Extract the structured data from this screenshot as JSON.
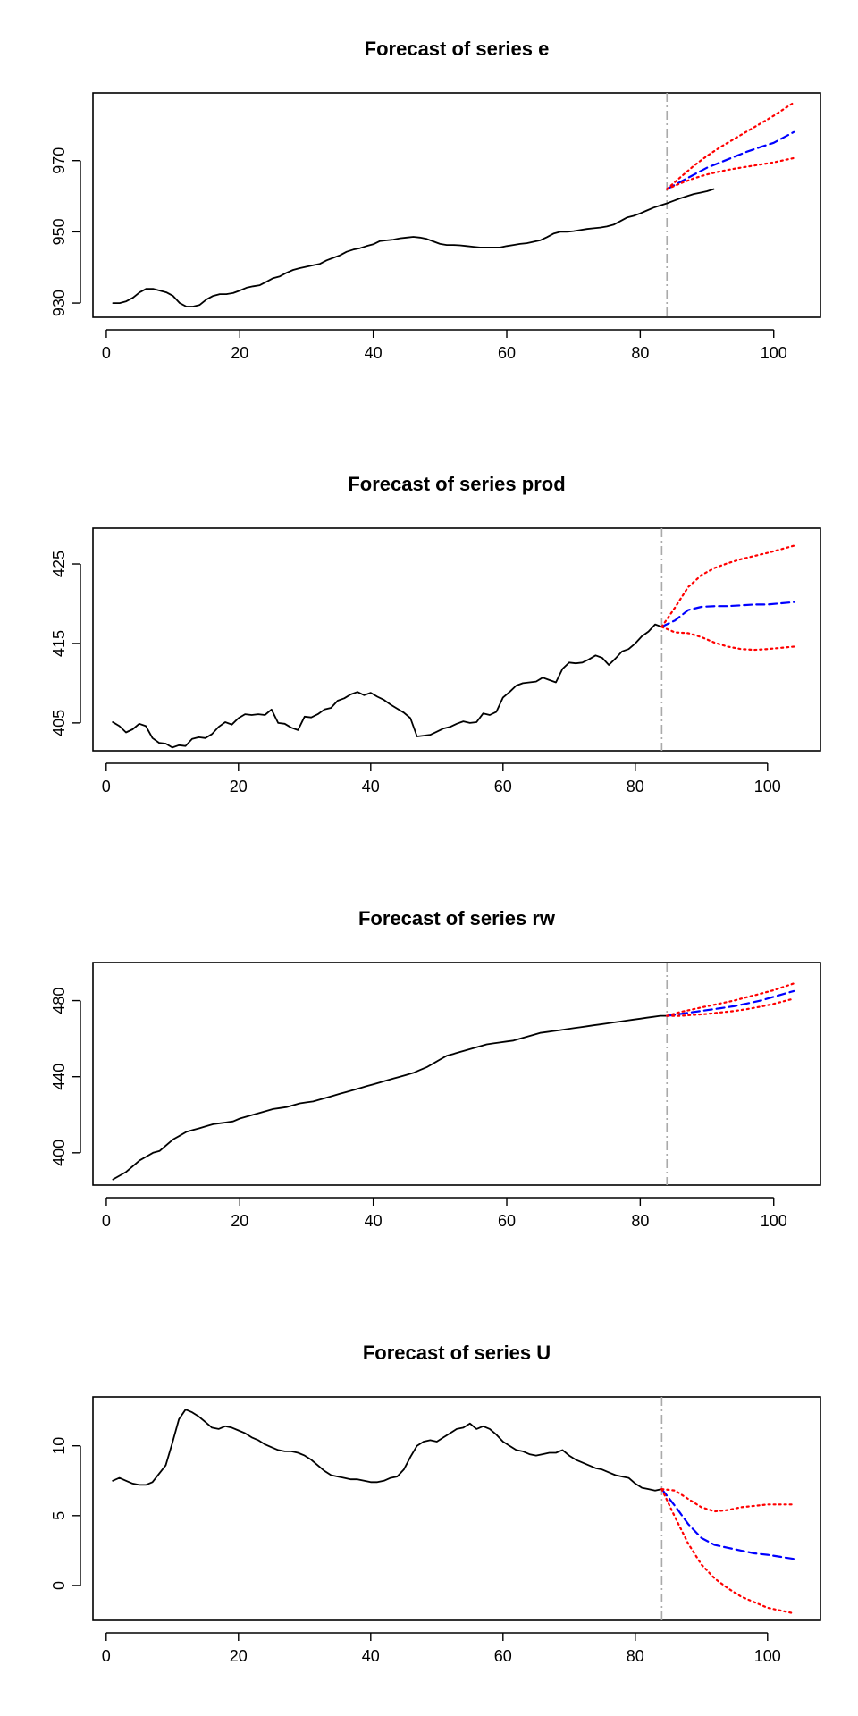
{
  "chart_data": [
    {
      "type": "line",
      "title": "Forecast of series e",
      "xlabel": "",
      "ylabel": "",
      "xlim": [
        -2,
        107
      ],
      "ylim": [
        926,
        989
      ],
      "x_ticks": [
        0,
        20,
        40,
        60,
        80,
        100
      ],
      "y_ticks": [
        930,
        950,
        970
      ],
      "forecast_origin": 84,
      "colors": {
        "observed": "#000000",
        "forecast": "#0000ff",
        "interval": "#ff0000",
        "origin_line": "#aaaaaa"
      },
      "series": [
        {
          "role": "observed",
          "x_start": 1,
          "values": [
            930,
            930,
            930.5,
            931.5,
            933,
            934,
            934,
            933.5,
            933,
            932,
            930,
            929,
            929,
            929.5,
            931,
            932,
            932.5,
            932.5,
            932.8,
            933.5,
            934.3,
            934.7,
            935,
            936,
            937,
            937.5,
            938.5,
            939.3,
            939.8,
            940.2,
            940.6,
            941,
            942,
            942.7,
            943.4,
            944.4,
            945,
            945.4,
            946,
            946.5,
            947.4,
            947.6,
            947.8,
            948.2,
            948.4,
            948.6,
            948.4,
            948,
            947.3,
            946.6,
            946.3,
            946.3,
            946.2,
            946,
            945.8,
            945.6,
            945.6,
            945.6,
            945.6,
            946,
            946.3,
            946.6,
            946.8,
            947.2,
            947.6,
            948.5,
            949.5,
            950,
            950,
            950.2,
            950.5,
            950.8,
            951,
            951.2,
            951.5,
            952,
            953,
            954,
            954.5,
            955.2,
            956,
            956.8,
            957.4,
            958,
            958.7,
            959.4,
            960,
            960.6,
            961,
            961.4,
            962
          ]
        },
        {
          "role": "forecast",
          "x": [
            84,
            86,
            88,
            90,
            92,
            94,
            96,
            98,
            100,
            103
          ],
          "values": [
            962,
            964,
            966,
            968,
            969.5,
            971,
            972.5,
            973.8,
            975,
            978
          ]
        },
        {
          "role": "upper",
          "x": [
            84,
            86,
            88,
            90,
            92,
            94,
            96,
            98,
            100,
            103
          ],
          "values": [
            962,
            965.3,
            968.5,
            971.3,
            973.8,
            976,
            978.2,
            980.4,
            982.6,
            986.3
          ]
        },
        {
          "role": "lower",
          "x": [
            84,
            86,
            88,
            90,
            92,
            94,
            96,
            98,
            100,
            103
          ],
          "values": [
            962,
            963.6,
            965,
            966.1,
            967,
            967.7,
            968.3,
            968.9,
            969.5,
            970.7
          ]
        }
      ]
    },
    {
      "type": "line",
      "title": "Forecast of series prod",
      "xlabel": "",
      "ylabel": "",
      "xlim": [
        -2,
        108
      ],
      "ylim": [
        401.5,
        429.5
      ],
      "x_ticks": [
        0,
        20,
        40,
        60,
        80,
        100
      ],
      "y_ticks": [
        405,
        415,
        425
      ],
      "forecast_origin": 84,
      "colors": {
        "observed": "#000000",
        "forecast": "#0000ff",
        "interval": "#ff0000",
        "origin_line": "#aaaaaa"
      },
      "series": [
        {
          "role": "observed",
          "x_start": 1,
          "values": [
            405.1,
            404.6,
            403.8,
            404.2,
            404.9,
            404.6,
            403.1,
            402.5,
            402.4,
            401.9,
            402.2,
            402.1,
            403,
            403.2,
            403.1,
            403.6,
            404.5,
            405.1,
            404.8,
            405.6,
            406.1,
            406,
            406.1,
            406,
            406.7,
            405,
            404.9,
            404.4,
            404.1,
            405.8,
            405.7,
            406.1,
            406.7,
            406.9,
            407.8,
            408.1,
            408.6,
            408.9,
            408.5,
            408.8,
            408.3,
            407.9,
            407.3,
            406.8,
            406.3,
            405.6,
            403.3,
            403.4,
            403.5,
            403.9,
            404.3,
            404.5,
            404.9,
            405.2,
            405,
            405.1,
            406.2,
            406,
            406.4,
            408.2,
            408.9,
            409.7,
            410,
            410.1,
            410.2,
            410.7,
            410.4,
            410.1,
            411.8,
            412.6,
            412.5,
            412.6,
            413,
            413.5,
            413.2,
            412.3,
            413.1,
            414,
            414.3,
            415,
            415.9,
            416.5,
            417.4,
            417.1
          ]
        },
        {
          "role": "forecast",
          "x": [
            84,
            86,
            88,
            90,
            92,
            94,
            96,
            98,
            100,
            104
          ],
          "values": [
            417.1,
            417.9,
            419.2,
            419.6,
            419.7,
            419.7,
            419.8,
            419.9,
            419.9,
            420.2
          ]
        },
        {
          "role": "upper",
          "x": [
            84,
            86,
            88,
            90,
            92,
            94,
            96,
            98,
            100,
            104
          ],
          "values": [
            417.1,
            419.5,
            422.1,
            423.6,
            424.5,
            425.1,
            425.6,
            426,
            426.4,
            427.3
          ]
        },
        {
          "role": "lower",
          "x": [
            84,
            86,
            88,
            90,
            92,
            94,
            96,
            98,
            100,
            104
          ],
          "values": [
            417.1,
            416.4,
            416.3,
            415.8,
            415.1,
            414.6,
            414.3,
            414.2,
            414.3,
            414.6
          ]
        }
      ]
    },
    {
      "type": "line",
      "title": "Forecast of series rw",
      "xlabel": "",
      "ylabel": "",
      "xlim": [
        -2,
        107
      ],
      "ylim": [
        383,
        500
      ],
      "x_ticks": [
        0,
        20,
        40,
        60,
        80,
        100
      ],
      "y_ticks": [
        400,
        440,
        480
      ],
      "forecast_origin": 84,
      "colors": {
        "observed": "#000000",
        "forecast": "#0000ff",
        "interval": "#ff0000",
        "origin_line": "#aaaaaa"
      },
      "series": [
        {
          "role": "observed",
          "x_start": 1,
          "values": [
            386,
            388,
            390,
            393,
            396,
            398,
            400,
            401,
            404,
            407,
            409,
            411,
            412,
            413,
            414,
            415,
            415.5,
            416,
            416.5,
            418,
            419,
            420,
            421,
            422,
            423,
            423.5,
            424,
            425,
            426,
            426.5,
            427,
            428,
            429,
            430,
            431,
            432,
            433,
            434,
            435,
            436,
            437,
            438,
            439,
            440,
            441,
            442,
            443.5,
            445,
            447,
            449,
            451,
            452,
            453,
            454,
            455,
            456,
            457,
            457.5,
            458,
            458.5,
            459,
            460,
            461,
            462,
            463,
            463.5,
            464,
            464.5,
            465,
            465.5,
            466,
            466.5,
            467,
            467.5,
            468,
            468.5,
            469,
            469.5,
            470,
            470.5,
            471,
            471.5,
            472,
            472
          ]
        },
        {
          "role": "forecast",
          "x": [
            84,
            86,
            88,
            90,
            92,
            94,
            96,
            98,
            100,
            103
          ],
          "values": [
            472,
            473,
            474,
            475,
            476,
            477,
            478.5,
            480,
            482,
            485
          ]
        },
        {
          "role": "upper",
          "x": [
            84,
            86,
            88,
            90,
            92,
            94,
            96,
            98,
            100,
            103
          ],
          "values": [
            472,
            474,
            475.5,
            477,
            478.5,
            480,
            481.8,
            483.6,
            485.5,
            489
          ]
        },
        {
          "role": "lower",
          "x": [
            84,
            86,
            88,
            90,
            92,
            94,
            96,
            98,
            100,
            103
          ],
          "values": [
            472,
            472,
            472.5,
            473,
            473.8,
            474.5,
            475.5,
            476.8,
            478.3,
            481
          ]
        }
      ]
    },
    {
      "type": "line",
      "title": "Forecast of series U",
      "xlabel": "",
      "ylabel": "",
      "xlim": [
        -2,
        108
      ],
      "ylim": [
        -2.5,
        13.5
      ],
      "x_ticks": [
        0,
        20,
        40,
        60,
        80,
        100
      ],
      "y_ticks": [
        0,
        5,
        10
      ],
      "forecast_origin": 84,
      "colors": {
        "observed": "#000000",
        "forecast": "#0000ff",
        "interval": "#ff0000",
        "origin_line": "#aaaaaa"
      },
      "series": [
        {
          "role": "observed",
          "x_start": 1,
          "values": [
            7.5,
            7.7,
            7.5,
            7.3,
            7.2,
            7.2,
            7.4,
            8,
            8.6,
            10.2,
            11.9,
            12.6,
            12.4,
            12.1,
            11.7,
            11.3,
            11.2,
            11.4,
            11.3,
            11.1,
            10.9,
            10.6,
            10.4,
            10.1,
            9.9,
            9.7,
            9.6,
            9.6,
            9.5,
            9.3,
            9,
            8.6,
            8.2,
            7.9,
            7.8,
            7.7,
            7.6,
            7.6,
            7.5,
            7.4,
            7.4,
            7.5,
            7.7,
            7.8,
            8.3,
            9.2,
            10,
            10.3,
            10.4,
            10.3,
            10.6,
            10.9,
            11.2,
            11.3,
            11.6,
            11.2,
            11.4,
            11.2,
            10.8,
            10.3,
            10,
            9.7,
            9.6,
            9.4,
            9.3,
            9.4,
            9.5,
            9.5,
            9.7,
            9.3,
            9,
            8.8,
            8.6,
            8.4,
            8.3,
            8.1,
            7.9,
            7.8,
            7.7,
            7.3,
            7,
            6.9,
            6.8,
            6.9
          ]
        },
        {
          "role": "forecast",
          "x": [
            84,
            86,
            88,
            90,
            92,
            94,
            96,
            98,
            100,
            104
          ],
          "values": [
            6.9,
            5.7,
            4.4,
            3.4,
            2.9,
            2.7,
            2.5,
            2.3,
            2.2,
            1.9
          ]
        },
        {
          "role": "upper",
          "x": [
            84,
            86,
            88,
            90,
            92,
            94,
            96,
            98,
            100,
            104
          ],
          "values": [
            6.9,
            6.8,
            6.2,
            5.6,
            5.3,
            5.4,
            5.6,
            5.7,
            5.8,
            5.8
          ]
        },
        {
          "role": "lower",
          "x": [
            84,
            86,
            88,
            90,
            92,
            94,
            96,
            98,
            100,
            104
          ],
          "values": [
            6.9,
            4.9,
            3,
            1.5,
            0.5,
            -0.2,
            -0.8,
            -1.2,
            -1.6,
            -2
          ]
        }
      ]
    }
  ]
}
